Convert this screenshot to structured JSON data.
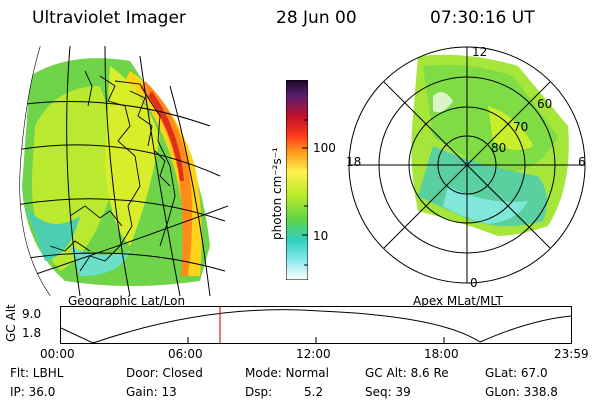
{
  "header": {
    "instrument": "Ultraviolet Imager",
    "date": "28 Jun 00",
    "time": "07:30:16 UT"
  },
  "left_panel": {
    "caption": "Geographic Lat/Lon"
  },
  "right_panel": {
    "caption": "Apex MLat/MLT",
    "mlt_labels": [
      "12",
      "18",
      "6",
      "0"
    ],
    "mlat_labels": [
      "60",
      "70",
      "80"
    ]
  },
  "colorbar": {
    "unit_label": "photon cm⁻²s⁻¹",
    "ticks": [
      "100",
      "10"
    ]
  },
  "altitude_plot": {
    "ylabel": "GC Alt",
    "y_ticks": [
      "9.0",
      "1.8"
    ],
    "x_ticks": [
      "00:00",
      "06:00",
      "12:00",
      "18:00",
      "23:59"
    ],
    "marker_color": "#dd2222"
  },
  "info": {
    "flt": "Flt: LBHL",
    "door": "Door: Closed",
    "mode": "Mode: Normal",
    "gc_alt": "GC Alt: 8.6 Re",
    "glat": "GLat: 67.0",
    "ip": "IP: 36.0",
    "gain": "Gain: 13",
    "dsp_label": "Dsp:",
    "dsp_value": "5.2",
    "seq": "Seq: 39",
    "glon": "GLon: 338.8"
  }
}
